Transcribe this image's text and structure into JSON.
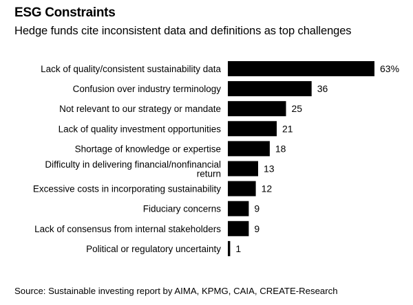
{
  "title": "ESG Constraints",
  "subtitle": "Hedge funds cite inconsistent data and definitions as top challenges",
  "source": "Source: Sustainable investing report by AIMA, KPMG, CAIA, CREATE-Research",
  "chart_data": {
    "type": "bar",
    "orientation": "horizontal",
    "title": "ESG Constraints",
    "subtitle": "Hedge funds cite inconsistent data and definitions as top challenges",
    "xlabel": "",
    "ylabel": "",
    "unit": "%",
    "xlim": [
      0,
      63
    ],
    "grid": false,
    "categories": [
      [
        "Lack of quality/consistent sustainability data"
      ],
      [
        "Confusion over industry terminology"
      ],
      [
        "Not relevant to our strategy or mandate"
      ],
      [
        "Lack of quality investment opportunities"
      ],
      [
        "Shortage of knowledge or expertise"
      ],
      [
        "Difficulty in delivering financial/nonfinancial",
        "return"
      ],
      [
        "Excessive costs in incorporating sustainability"
      ],
      [
        "Fiduciary concerns"
      ],
      [
        "Lack of consensus from internal stakeholders"
      ],
      [
        "Political or regulatory uncertainty"
      ]
    ],
    "values": [
      63,
      36,
      25,
      21,
      18,
      13,
      12,
      9,
      9,
      1
    ],
    "value_labels": [
      "63%",
      "36",
      "25",
      "21",
      "18",
      "13",
      "12",
      "9",
      "9",
      "1"
    ],
    "bar_color": "#000000"
  }
}
